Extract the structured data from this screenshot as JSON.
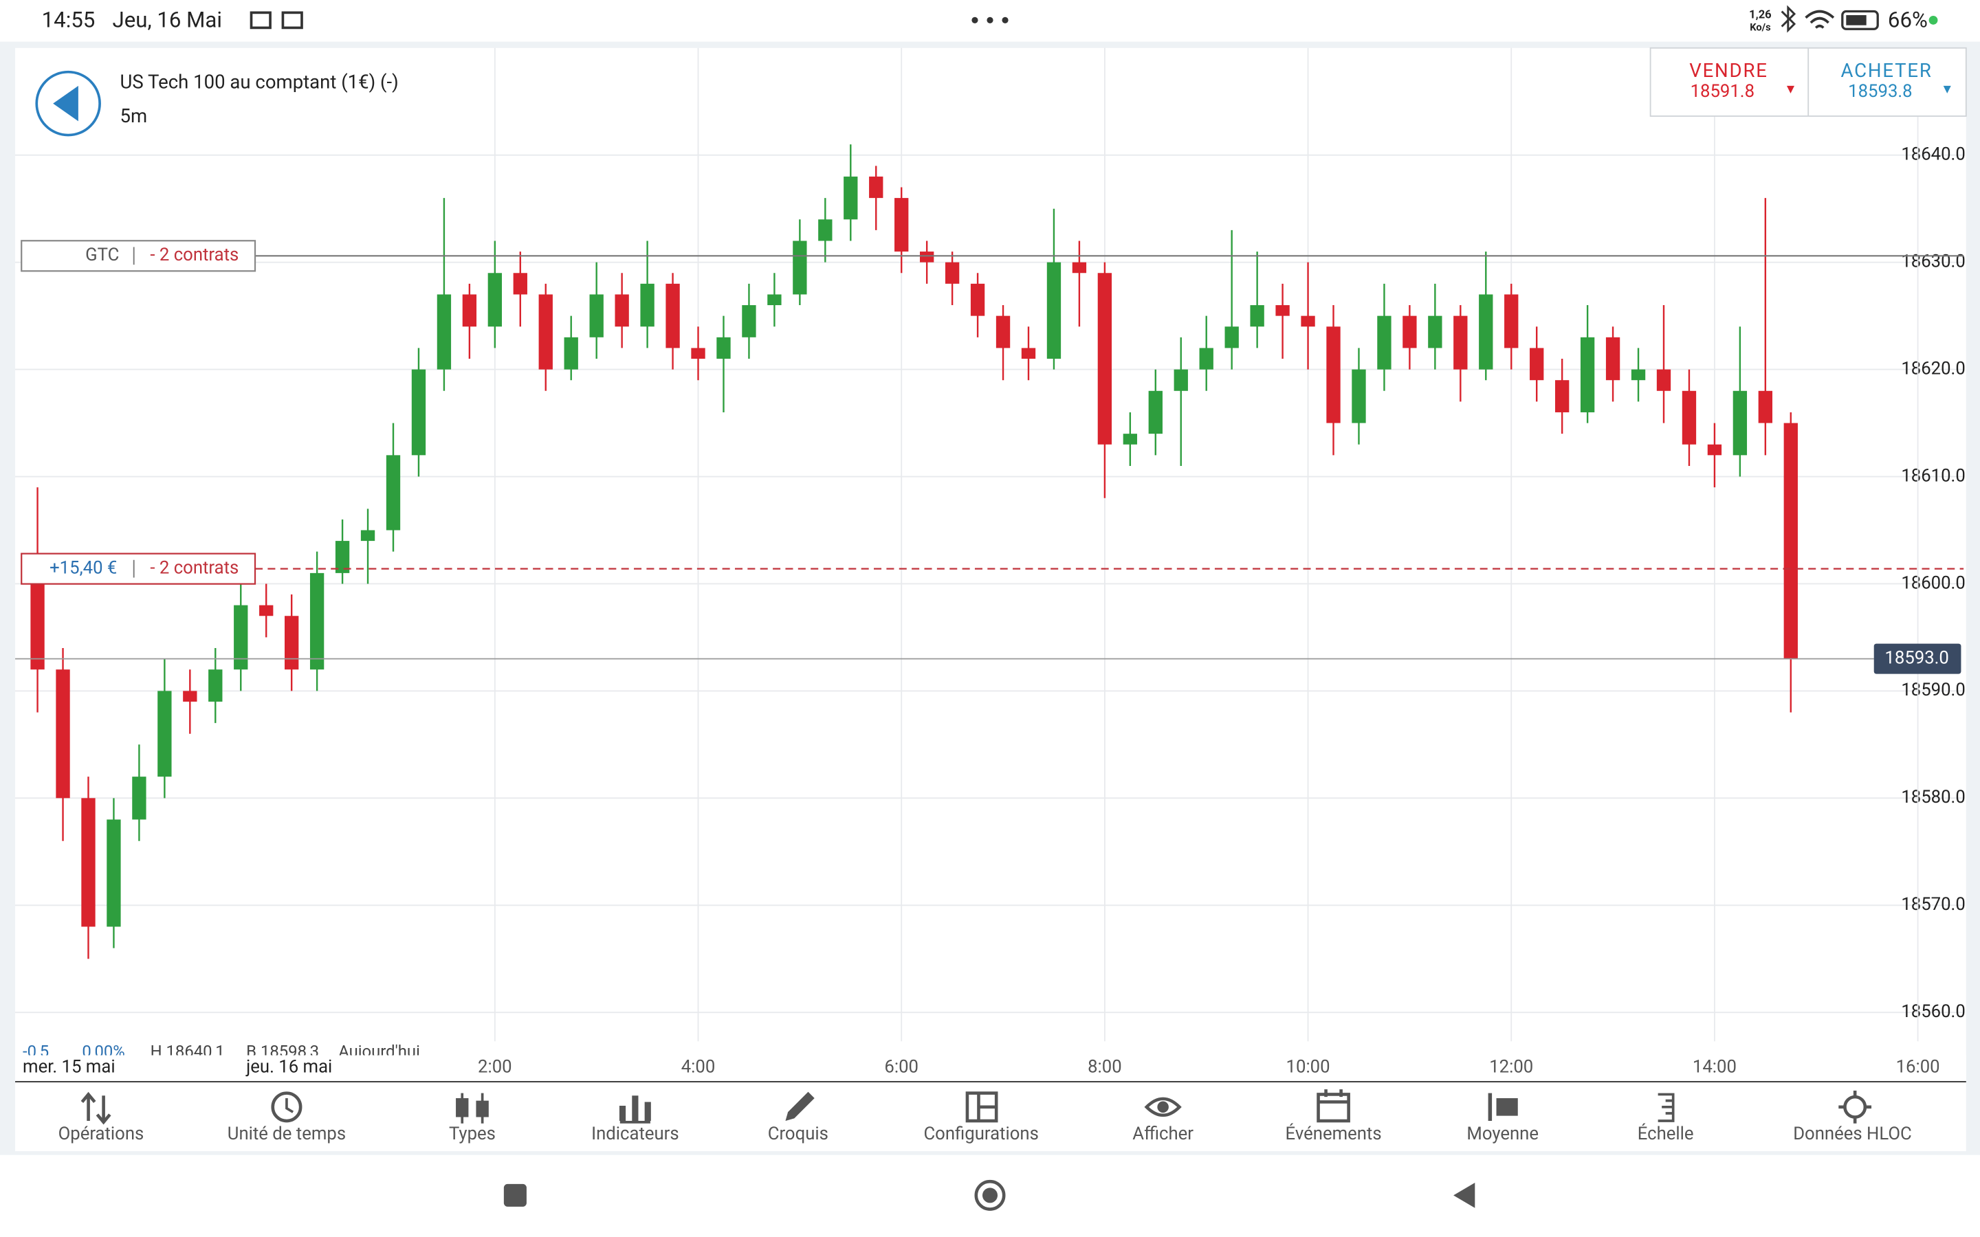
{
  "status_bar": {
    "time": "14:55",
    "date": "Jeu, 16 Mai",
    "net_rate": "1,26",
    "net_unit": "Ko/s",
    "battery": "66%"
  },
  "header": {
    "instrument": "US Tech 100 au comptant (1€) (-)",
    "timeframe": "5m"
  },
  "quote": {
    "sell_label": "VENDRE",
    "sell_price": "18591.8",
    "buy_label": "ACHETER",
    "buy_price": "18593.8"
  },
  "chart_data": {
    "type": "candlestick",
    "x": [
      -2.5,
      -2.25,
      -2,
      -1.75,
      -1.5,
      -1.25,
      -1,
      -0.75,
      -0.5,
      -0.25,
      0,
      0.25,
      0.5,
      0.75,
      1,
      1.25,
      1.5,
      1.75,
      2,
      2.25,
      2.5,
      2.75,
      3,
      3.25,
      3.5,
      3.75,
      4,
      4.25,
      4.5,
      4.75,
      5,
      5.25,
      5.5,
      5.75,
      6,
      6.25,
      6.5,
      6.75,
      7,
      7.25,
      7.5,
      7.75,
      8,
      8.25,
      8.5,
      8.75,
      9,
      9.25,
      9.5,
      9.75,
      10,
      10.25,
      10.5,
      10.75,
      11,
      11.25,
      11.5,
      11.75,
      12,
      12.25,
      12.5,
      12.75,
      13,
      13.25,
      13.5,
      13.75,
      14,
      14.25,
      14.5,
      14.75
    ],
    "open": [
      18600,
      18592,
      18580,
      18568,
      18578,
      18582,
      18590,
      18589,
      18592,
      18598,
      18597,
      18592,
      18601,
      18604,
      18605,
      18612,
      18620,
      18627,
      18624,
      18629,
      18627,
      18620,
      18623,
      18627,
      18624,
      18628,
      18622,
      18621,
      18623,
      18626,
      18627,
      18632,
      18634,
      18638,
      18636,
      18631,
      18630,
      18628,
      18625,
      18622,
      18621,
      18630,
      18629,
      18613,
      18614,
      18618,
      18620,
      18622,
      18624,
      18626,
      18625,
      18624,
      18615,
      18620,
      18625,
      18622,
      18625,
      18620,
      18627,
      18622,
      18619,
      18616,
      18623,
      18619,
      18620,
      18618,
      18613,
      18612,
      18618,
      18615
    ],
    "high": [
      18609,
      18594,
      18582,
      18580,
      18585,
      18593,
      18592,
      18594,
      18600,
      18600,
      18599,
      18603,
      18606,
      18607,
      18615,
      18622,
      18636,
      18628,
      18632,
      18631,
      18628,
      18625,
      18630,
      18629,
      18632,
      18629,
      18624,
      18625,
      18628,
      18629,
      18634,
      18636,
      18641,
      18639,
      18637,
      18632,
      18631,
      18629,
      18626,
      18624,
      18635,
      18632,
      18630,
      18616,
      18620,
      18623,
      18625,
      18633,
      18631,
      18628,
      18630,
      18626,
      18622,
      18628,
      18626,
      18628,
      18626,
      18631,
      18628,
      18624,
      18621,
      18626,
      18624,
      18622,
      18626,
      18620,
      18615,
      18624,
      18636,
      18616
    ],
    "low": [
      18588,
      18576,
      18565,
      18566,
      18576,
      18580,
      18586,
      18587,
      18590,
      18595,
      18590,
      18590,
      18600,
      18600,
      18603,
      18610,
      18618,
      18621,
      18622,
      18624,
      18618,
      18619,
      18621,
      18622,
      18622,
      18620,
      18619,
      18616,
      18621,
      18624,
      18626,
      18630,
      18632,
      18633,
      18629,
      18628,
      18626,
      18623,
      18619,
      18619,
      18620,
      18624,
      18608,
      18611,
      18612,
      18611,
      18618,
      18620,
      18622,
      18621,
      18620,
      18612,
      18613,
      18618,
      18620,
      18620,
      18617,
      18619,
      18620,
      18617,
      18614,
      18615,
      18617,
      18617,
      18615,
      18611,
      18609,
      18610,
      18612,
      18588
    ],
    "close": [
      18592,
      18580,
      18568,
      18578,
      18582,
      18590,
      18589,
      18592,
      18598,
      18597,
      18592,
      18601,
      18604,
      18605,
      18612,
      18620,
      18627,
      18624,
      18629,
      18627,
      18620,
      18623,
      18627,
      18624,
      18628,
      18622,
      18621,
      18623,
      18626,
      18627,
      18632,
      18634,
      18638,
      18636,
      18631,
      18630,
      18628,
      18625,
      18622,
      18621,
      18630,
      18629,
      18613,
      18614,
      18618,
      18620,
      18622,
      18624,
      18626,
      18625,
      18624,
      18615,
      18620,
      18625,
      18622,
      18625,
      18620,
      18627,
      18622,
      18619,
      18616,
      18623,
      18619,
      18620,
      18618,
      18613,
      18612,
      18618,
      18615,
      18593
    ],
    "up_color": "#2e9e3e",
    "down_color": "#d9232d",
    "xlim": [
      -2.72,
      16.45
    ],
    "ylim": [
      18557.3,
      18650.0
    ],
    "xticks": [
      {
        "value": 2,
        "label": "2:00"
      },
      {
        "value": 4,
        "label": "4:00"
      },
      {
        "value": 6,
        "label": "6:00"
      },
      {
        "value": 8,
        "label": "8:00"
      },
      {
        "value": 10,
        "label": "10:00"
      },
      {
        "value": 12,
        "label": "12:00"
      },
      {
        "value": 14,
        "label": "14:00"
      },
      {
        "value": 16,
        "label": "16:00"
      }
    ],
    "yticks": [
      {
        "value": 18560,
        "label": "18560.0"
      },
      {
        "value": 18570,
        "label": "18570.0"
      },
      {
        "value": 18580,
        "label": "18580.0"
      },
      {
        "value": 18590,
        "label": "18590.0"
      },
      {
        "value": 18600,
        "label": "18600.0"
      },
      {
        "value": 18610,
        "label": "18610.0"
      },
      {
        "value": 18620,
        "label": "18620.0"
      },
      {
        "value": 18630,
        "label": "18630.0"
      },
      {
        "value": 18640,
        "label": "18640.0"
      }
    ],
    "grid": true,
    "date_labels": [
      "mer. 15 mai",
      "jeu. 16 mai"
    ],
    "last_price": {
      "value": 18593,
      "label": "18593.0"
    },
    "orders": [
      {
        "label": "GTC",
        "quantity": "- 2 contrats",
        "price": 18630.6
      },
      {
        "label": "+15,40 €",
        "quantity": "- 2 contrats",
        "price": 18601.4
      }
    ],
    "stats": [
      "-0,5",
      "0,00%",
      "H 18640,1",
      "B 18598,3",
      "Aujourd'hui"
    ]
  },
  "toolbar": [
    "Opérations",
    "Unité de temps",
    "Types",
    "Indicateurs",
    "Croquis",
    "Configurations",
    "Afficher",
    "Événements",
    "Moyenne",
    "Échelle",
    "Données HLOC"
  ]
}
